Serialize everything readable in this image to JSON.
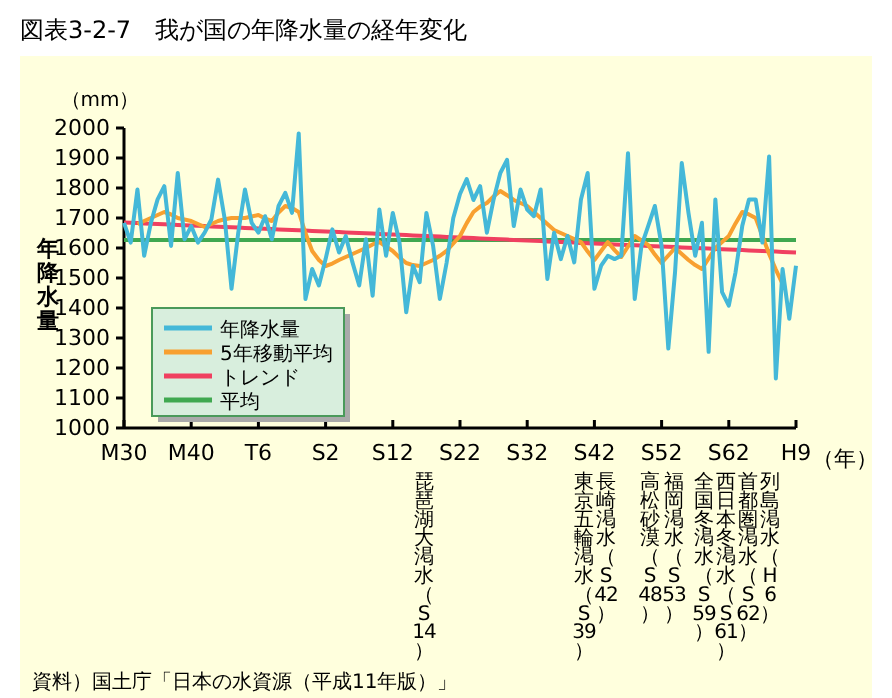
{
  "chart_data": {
    "type": "line",
    "title": "図表3-2-7　我が国の年降水量の経年変化",
    "ylabel": "年降水量",
    "subtitle": "（mm）",
    "xlabel": "（年）",
    "categories": [
      "M30",
      null,
      null,
      null,
      null,
      null,
      null,
      null,
      null,
      null,
      "M40",
      null,
      null,
      null,
      null,
      null,
      null,
      null,
      null,
      null,
      "T6",
      null,
      null,
      null,
      null,
      null,
      null,
      null,
      null,
      null,
      "S2",
      null,
      null,
      null,
      null,
      null,
      null,
      null,
      null,
      null,
      "S12",
      null,
      null,
      null,
      null,
      null,
      null,
      null,
      null,
      null,
      "S22",
      null,
      null,
      null,
      null,
      null,
      null,
      null,
      null,
      null,
      "S32",
      null,
      null,
      null,
      null,
      null,
      null,
      null,
      null,
      null,
      "S42",
      null,
      null,
      null,
      null,
      null,
      null,
      null,
      null,
      null,
      "S52",
      null,
      null,
      null,
      null,
      null,
      null,
      null,
      null,
      null,
      "S62",
      null,
      null,
      null,
      null,
      null,
      null,
      null,
      null,
      null,
      "H9"
    ],
    "ylim": [
      1000,
      2000
    ],
    "yticks": [
      1000,
      1100,
      1200,
      1300,
      1400,
      1500,
      1600,
      1700,
      1800,
      1900,
      2000
    ],
    "legend": "bottom left",
    "series": [
      {
        "name": "年降水量",
        "color": "#44b8d8",
        "values": [
          1684,
          1618,
          1795,
          1574,
          1684,
          1762,
          1806,
          1607,
          1850,
          1629,
          1673,
          1618,
          1651,
          1695,
          1828,
          1695,
          1464,
          1651,
          1795,
          1684,
          1651,
          1706,
          1629,
          1740,
          1784,
          1717,
          1982,
          1430,
          1530,
          1475,
          1563,
          1662,
          1585,
          1640,
          1552,
          1475,
          1629,
          1441,
          1728,
          1574,
          1717,
          1618,
          1386,
          1541,
          1486,
          1717,
          1607,
          1430,
          1550,
          1700,
          1780,
          1830,
          1760,
          1806,
          1651,
          1762,
          1850,
          1894,
          1673,
          1795,
          1728,
          1706,
          1795,
          1497,
          1651,
          1563,
          1640,
          1552,
          1762,
          1850,
          1464,
          1541,
          1574,
          1563,
          1574,
          1916,
          1430,
          1607,
          1673,
          1740,
          1607,
          1265,
          1519,
          1883,
          1717,
          1574,
          1684,
          1254,
          1762,
          1453,
          1408,
          1519,
          1673,
          1762,
          1762,
          1618,
          1905,
          1165,
          1530,
          1364,
          1541
        ]
      },
      {
        "name": "5年移動平均",
        "color": "#f8a030",
        "values": [
          null,
          null,
          1680,
          1690,
          1700,
          1710,
          1720,
          1712,
          1700,
          1695,
          1690,
          1680,
          1670,
          1680,
          1690,
          1696,
          1700,
          1700,
          1700,
          1705,
          1710,
          1698,
          1690,
          1718,
          1740,
          1733,
          1720,
          1650,
          1590,
          1560,
          1540,
          1548,
          1560,
          1570,
          1580,
          1590,
          1600,
          1612,
          1620,
          1605,
          1590,
          1568,
          1550,
          1543,
          1540,
          1550,
          1560,
          1574,
          1590,
          1615,
          1640,
          1683,
          1720,
          1738,
          1750,
          1772,
          1790,
          1776,
          1760,
          1750,
          1740,
          1720,
          1700,
          1680,
          1660,
          1650,
          1640,
          1630,
          1620,
          1588,
          1560,
          1590,
          1620,
          1593,
          1570,
          1605,
          1640,
          1625,
          1610,
          1578,
          1550,
          1575,
          1600,
          1580,
          1560,
          1543,
          1530,
          1565,
          1600,
          1620,
          1640,
          1682,
          1720,
          1712,
          1700,
          1640,
          1580,
          1528,
          1480,
          null,
          null
        ]
      },
      {
        "name": "トレンド",
        "color": "#f04060",
        "values": [
          1685,
          1684,
          1683,
          1682,
          1681,
          1680,
          1679,
          1678,
          1677,
          1676,
          1675,
          1674,
          1673,
          1672,
          1671,
          1670,
          1669,
          1668,
          1667,
          1666,
          1665,
          1664,
          1663,
          1662,
          1661,
          1660,
          1659,
          1658,
          1657,
          1656,
          1655,
          1654,
          1653,
          1652,
          1651,
          1650,
          1649,
          1648,
          1647,
          1646,
          1645,
          1644,
          1643,
          1642,
          1641,
          1640,
          1639,
          1638,
          1637,
          1636,
          1635,
          1634,
          1633,
          1632,
          1631,
          1630,
          1629,
          1628,
          1627,
          1626,
          1625,
          1624,
          1623,
          1622,
          1621,
          1620,
          1619,
          1618,
          1617,
          1616,
          1615,
          1614,
          1613,
          1612,
          1611,
          1610,
          1609,
          1608,
          1607,
          1606,
          1605,
          1604,
          1603,
          1602,
          1601,
          1600,
          1599,
          1598,
          1597,
          1596,
          1595,
          1594,
          1593,
          1592,
          1591,
          1590,
          1589,
          1588,
          1587,
          1586,
          1585
        ]
      },
      {
        "name": "平均",
        "color": "#40a850",
        "values": [
          1627,
          1627,
          1627,
          1627,
          1627,
          1627,
          1627,
          1627,
          1627,
          1627,
          1627,
          1627,
          1627,
          1627,
          1627,
          1627,
          1627,
          1627,
          1627,
          1627,
          1627,
          1627,
          1627,
          1627,
          1627,
          1627,
          1627,
          1627,
          1627,
          1627,
          1627,
          1627,
          1627,
          1627,
          1627,
          1627,
          1627,
          1627,
          1627,
          1627,
          1627,
          1627,
          1627,
          1627,
          1627,
          1627,
          1627,
          1627,
          1627,
          1627,
          1627,
          1627,
          1627,
          1627,
          1627,
          1627,
          1627,
          1627,
          1627,
          1627,
          1627,
          1627,
          1627,
          1627,
          1627,
          1627,
          1627,
          1627,
          1627,
          1627,
          1627,
          1627,
          1627,
          1627,
          1627,
          1627,
          1627,
          1627,
          1627,
          1627,
          1627,
          1627,
          1627,
          1627,
          1627,
          1627,
          1627,
          1627,
          1627,
          1627,
          1627,
          1627,
          1627,
          1627,
          1627,
          1627,
          1627,
          1627,
          1627,
          1627,
          1627
        ]
      }
    ],
    "annotations": [
      "琵琶湖大渇水（S14）",
      "東京五輪渇水（S39）",
      "長崎渇水（S42）",
      "高松砂漠（S48）",
      "福岡渇水（S53）",
      "全国冬渇水（S59）",
      "西日本冬渇水（S61）",
      "首都圏渇水（S62）",
      "列島渇水（H6）",
      "資料）国土庁「日本の水資源（平成11年版）」"
    ]
  }
}
